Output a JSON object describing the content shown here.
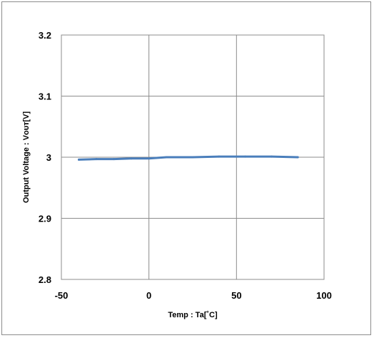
{
  "chart_data": {
    "type": "line",
    "title": "",
    "xlabel": "Temp : Ta[˚C]",
    "ylabel": "Output Voltage : Vᴏᴜᴛ[V]",
    "xlim": [
      -50,
      100
    ],
    "ylim": [
      2.8,
      3.2
    ],
    "x_ticks": [
      -50,
      0,
      50,
      100
    ],
    "y_ticks": [
      2.8,
      2.9,
      3.0,
      3.1,
      3.2
    ],
    "x_tick_labels": [
      "-50",
      "0",
      "50",
      "100"
    ],
    "y_tick_labels": [
      "2.8",
      "2.9",
      "3",
      "3.1",
      "3.2"
    ],
    "grid": true,
    "legend": "none",
    "series": [
      {
        "color": "#4a7ebb",
        "x": [
          -40,
          -30,
          -20,
          -10,
          0,
          10,
          25,
          40,
          55,
          70,
          85
        ],
        "y": [
          2.996,
          2.997,
          2.997,
          2.998,
          2.998,
          3.0,
          3.0,
          3.001,
          3.001,
          3.001,
          3.0
        ]
      }
    ]
  }
}
